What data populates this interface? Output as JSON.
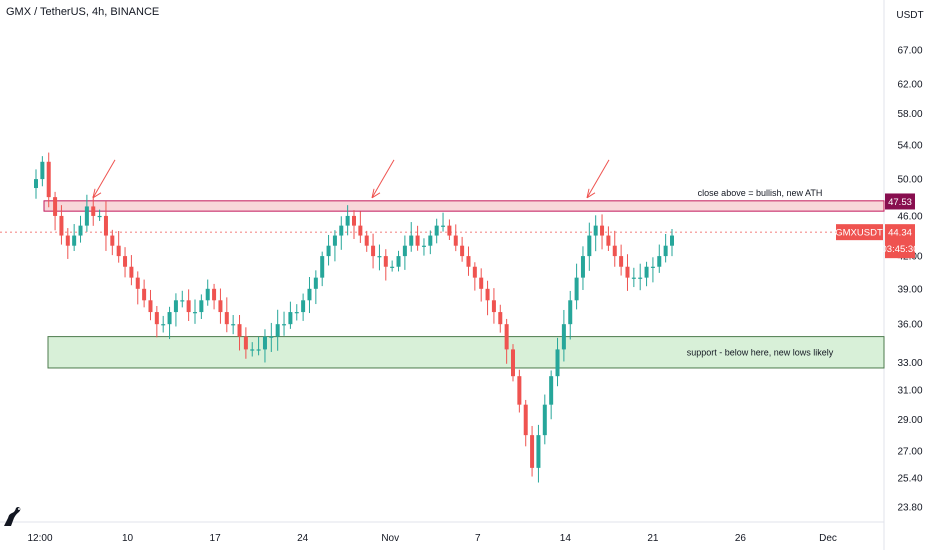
{
  "header": {
    "title": "GMX / TetherUS, 4h, BINANCE",
    "axis_unit": "USDT"
  },
  "branding": {
    "logo_icon": "tradingview-logo-icon"
  },
  "colors": {
    "up": "#26a69a",
    "down": "#ef5350",
    "resistance_fill": "#f8d7da",
    "resistance_border": "#c2185b",
    "support_fill": "#d8f0d8",
    "support_border": "#4c7a4c",
    "arrow": "#ef5350",
    "tag_resistance": "#880e4f",
    "tag_price": "#ef5350"
  },
  "chart_data": {
    "type": "candlestick",
    "title": "GMX / TetherUS, 4h, BINANCE",
    "y_axis": {
      "scale": "log",
      "ticks": [
        "67.00",
        "62.00",
        "58.00",
        "54.00",
        "50.00",
        "46.00",
        "42.00",
        "39.00",
        "36.00",
        "33.00",
        "31.00",
        "29.00",
        "27.00",
        "25.40",
        "23.80"
      ],
      "range": [
        23.0,
        73.0
      ]
    },
    "x_axis": {
      "ticks": [
        "12:00",
        "10",
        "17",
        "24",
        "Nov",
        "7",
        "14",
        "21",
        "26",
        "Dec"
      ]
    },
    "series": [
      {
        "type": "candles",
        "close_path": [
          50,
          52,
          48,
          46,
          44,
          43,
          44,
          45,
          47,
          46,
          46,
          44,
          43,
          42,
          41,
          40,
          39,
          38,
          37,
          36,
          36,
          37,
          38,
          38,
          37,
          37,
          38,
          39,
          38,
          37,
          36,
          36,
          35,
          34,
          34,
          34,
          35,
          35,
          36,
          36,
          37,
          37,
          38,
          39,
          40,
          42,
          43,
          44,
          45,
          46,
          45,
          44,
          43,
          42,
          42,
          41,
          41,
          42,
          43,
          44,
          43,
          43,
          44,
          45,
          45,
          44,
          43,
          42,
          41,
          40,
          39,
          38,
          37,
          36,
          34,
          32,
          30,
          28,
          26,
          28,
          30,
          32,
          34,
          36,
          38,
          40,
          42,
          44,
          45,
          44,
          43,
          42,
          41,
          40,
          40,
          40,
          41,
          41,
          42,
          43,
          44
        ]
      }
    ],
    "zones": [
      {
        "type": "resistance",
        "low": 46.5,
        "high": 47.6
      },
      {
        "type": "support",
        "low": 32.6,
        "high": 35.0
      }
    ],
    "annotations": [
      {
        "text": "close above = bullish, new ATH",
        "target": "resistance"
      },
      {
        "text": "support - below here, new lows likely",
        "target": "support"
      }
    ],
    "arrows": [
      {
        "x_label": "10",
        "target": "resistance"
      },
      {
        "x_label": "Nov",
        "target": "resistance"
      },
      {
        "x_label": "14",
        "target": "resistance"
      }
    ],
    "price_tags": [
      {
        "label": "47.53",
        "value": 47.53,
        "style": "resistance"
      },
      {
        "label": "44.34",
        "value": 44.34,
        "style": "last"
      }
    ],
    "symbol_tag": "GMXUSDT",
    "countdown": "03:45:30",
    "last_price": 44.34
  }
}
